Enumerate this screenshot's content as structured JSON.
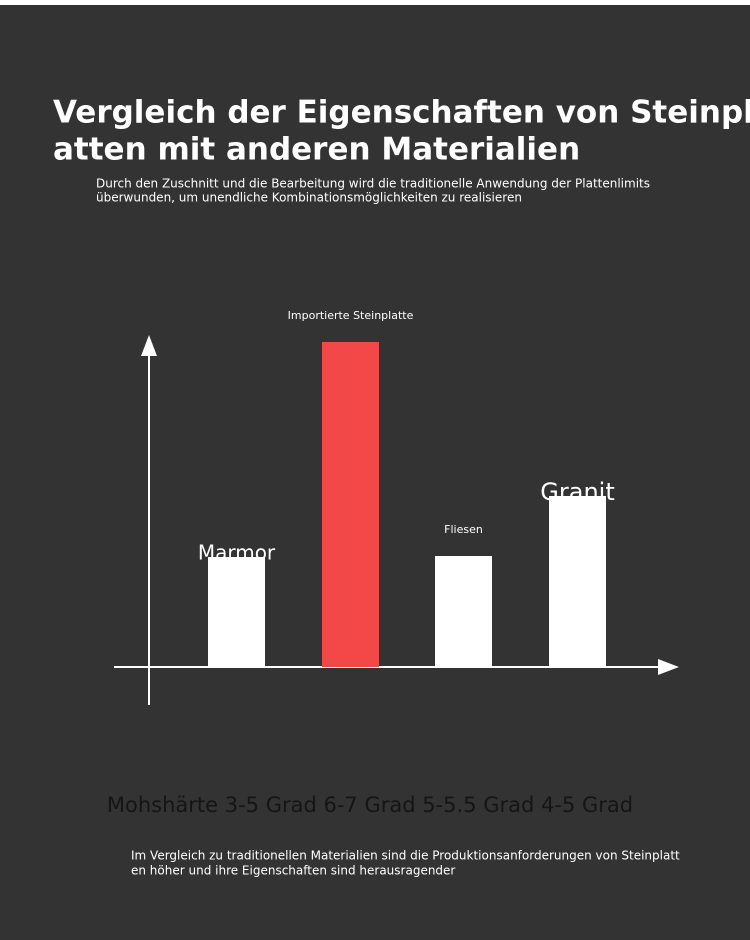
{
  "chart_data": {
    "type": "bar",
    "title_lines": [
      "Vergleich der Eigenschaften von Steinpl",
      "atten mit anderen Materialien"
    ],
    "subtitle_lines": [
      "Durch den Zuschnitt und die Bearbeitung wird die traditionelle Anwendung der Plattenlimits",
      "überwunden, um unendliche Kombinationsmöglichkeiten zu realisieren"
    ],
    "categories": [
      "Marmor",
      "Importierte Steinplatte",
      "Fliesen",
      "Granit"
    ],
    "values": [
      110,
      325,
      111,
      171
    ],
    "colors": [
      "#ffffff",
      "#f24848",
      "#ffffff",
      "#ffffff"
    ],
    "ylim": [
      0,
      330
    ],
    "caption": "Mohshärte 3-5 Grad 6-7 Grad 5-5.5 Grad 4-5 Grad",
    "note_lines": [
      "Im Vergleich zu traditionellen Materialien sind die Produktionsanforderungen von Steinplatt",
      "en höher und ihre Eigenschaften sind herausragender"
    ]
  }
}
